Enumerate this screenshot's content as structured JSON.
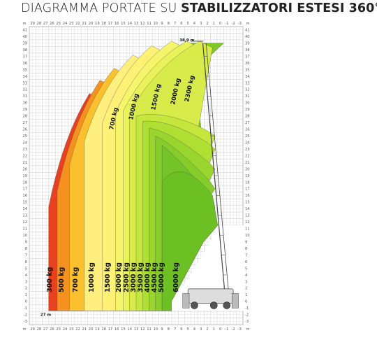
{
  "title": {
    "part1": "DIAGRAMMA PORTATE SU",
    "part2": "STABILIZZATORI ESTESI 360°"
  },
  "axes": {
    "x_ticks": [
      "29",
      "28",
      "27",
      "26",
      "25",
      "24",
      "23",
      "22",
      "21",
      "20",
      "19",
      "18",
      "17",
      "16",
      "15",
      "14",
      "13",
      "12",
      "11",
      "10",
      "9",
      "8",
      "7",
      "6",
      "5",
      "4",
      "3",
      "2",
      "1",
      "0",
      "-1",
      "-2",
      "-3"
    ],
    "y_ticks": [
      "-3",
      "-2",
      "-1",
      "0",
      "1",
      "2",
      "3",
      "4",
      "5",
      "6",
      "7",
      "8",
      "9",
      "10",
      "11",
      "12",
      "13",
      "14",
      "15",
      "16",
      "17",
      "18",
      "19",
      "20",
      "21",
      "22",
      "23",
      "24",
      "25",
      "26",
      "27",
      "28",
      "29",
      "30",
      "31",
      "32",
      "33",
      "34",
      "35",
      "36",
      "37",
      "38",
      "39",
      "40",
      "41"
    ],
    "unit_label": "m"
  },
  "annotations": {
    "max_height": "38,9 m",
    "max_outreach": "27 m"
  },
  "zones": [
    {
      "label": "300 kg",
      "color": "#e8411f"
    },
    {
      "label": "500 kg",
      "color": "#f5911e"
    },
    {
      "label": "700 kg",
      "color": "#fbc02d"
    },
    {
      "label": "1000 kg",
      "color": "#fff59d"
    },
    {
      "label": "1500 kg",
      "color": "#fff176"
    },
    {
      "label": "2000 kg",
      "color": "#f4f56a"
    },
    {
      "label": "2500 kg",
      "color": "#e9f25a"
    },
    {
      "label": "3000 kg",
      "color": "#d7ec4a"
    },
    {
      "label": "3500 kg",
      "color": "#c4e63d"
    },
    {
      "label": "4000 kg",
      "color": "#b0df34"
    },
    {
      "label": "4500 kg",
      "color": "#9ad52e"
    },
    {
      "label": "5000 kg",
      "color": "#86cc2a"
    },
    {
      "label": "6000 kg",
      "color": "#72c428"
    }
  ],
  "upper_labels": [
    "700 kg",
    "1000 kg",
    "1500 kg",
    "2000 kg",
    "2300 kg"
  ]
}
